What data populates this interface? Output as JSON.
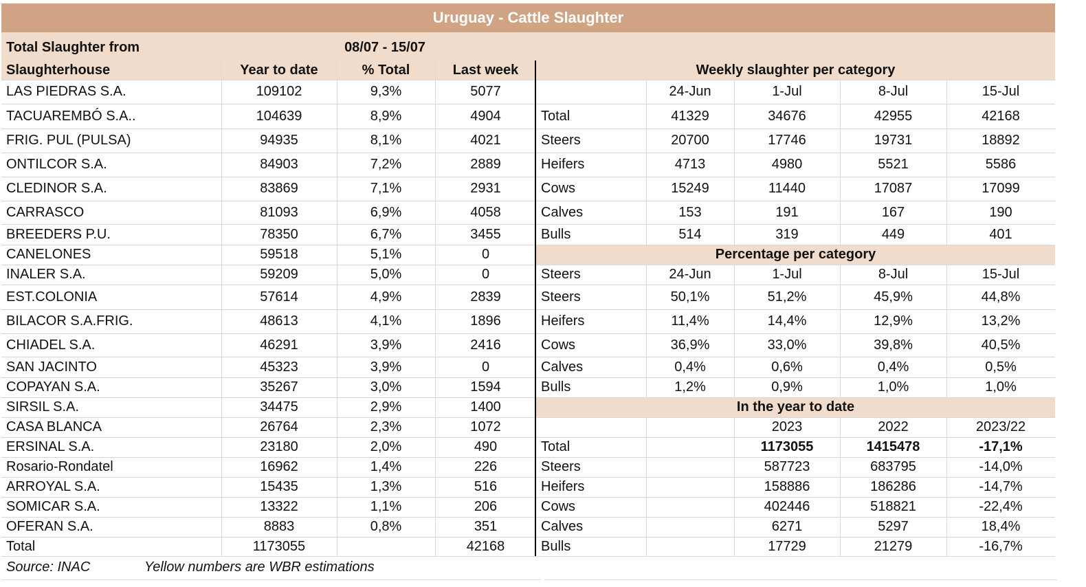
{
  "title": "Uruguay - Cattle Slaughter",
  "period_label": "Total Slaughter from",
  "period": "08/07 - 15/07",
  "left_table": {
    "headers": [
      "Slaughterhouse",
      "Year to date",
      "% Total",
      "Last week"
    ],
    "rows": [
      [
        "LAS PIEDRAS S.A.",
        109102,
        "9,3%",
        5077
      ],
      [
        "TACUAREMBÓ S.A..",
        104639,
        "8,9%",
        4904
      ],
      [
        "FRIG. PUL (PULSA)",
        94935,
        "8,1%",
        4021
      ],
      [
        "ONTILCOR S.A.",
        84903,
        "7,2%",
        2889
      ],
      [
        "CLEDINOR S.A.",
        83869,
        "7,1%",
        2931
      ],
      [
        "CARRASCO",
        81093,
        "6,9%",
        4058
      ],
      [
        "BREEDERS P.U.",
        78350,
        "6,7%",
        3455
      ],
      [
        "CANELONES",
        59518,
        "5,1%",
        0
      ],
      [
        "INALER S.A.",
        59209,
        "5,0%",
        0
      ],
      [
        "EST.COLONIA",
        57614,
        "4,9%",
        2839
      ],
      [
        "BILACOR S.A.FRIG.",
        48613,
        "4,1%",
        1896
      ],
      [
        "CHIADEL S.A.",
        46291,
        "3,9%",
        2416
      ],
      [
        "SAN JACINTO",
        45323,
        "3,9%",
        0
      ],
      [
        "COPAYAN S.A.",
        35267,
        "3,0%",
        1594
      ],
      [
        "SIRSIL S.A.",
        34475,
        "2,9%",
        1400
      ],
      [
        "CASA BLANCA",
        26764,
        "2,3%",
        1072
      ],
      [
        "ERSINAL S.A.",
        23180,
        "2,0%",
        490
      ],
      [
        "Rosario-Rondatel",
        16962,
        "1,4%",
        226
      ],
      [
        "ARROYAL S.A.",
        15435,
        "1,3%",
        516
      ],
      [
        "SOMICAR S.A.",
        13322,
        "1,1%",
        206
      ],
      [
        "OFERAN S.A.",
        8883,
        "0,8%",
        351
      ]
    ],
    "total": {
      "label": "Total",
      "year_to_date": 1173055,
      "last_week": 42168
    }
  },
  "weekly": {
    "title": "Weekly slaughter per category",
    "dates": [
      "24-Jun",
      "1-Jul",
      "8-Jul",
      "15-Jul"
    ],
    "rows": [
      [
        "Total",
        41329,
        34676,
        42955,
        42168
      ],
      [
        "Steers",
        20700,
        17746,
        19731,
        18892
      ],
      [
        "Heifers",
        4713,
        4980,
        5521,
        5586
      ],
      [
        "Cows",
        15249,
        11440,
        17087,
        17099
      ],
      [
        "Calves",
        153,
        191,
        167,
        190
      ],
      [
        "Bulls",
        514,
        319,
        449,
        401
      ]
    ]
  },
  "percentage": {
    "title": "Percentage per category",
    "header": [
      "Steers",
      "24-Jun",
      "1-Jul",
      "8-Jul",
      "15-Jul"
    ],
    "rows": [
      [
        "Steers",
        "50,1%",
        "51,2%",
        "45,9%",
        "44,8%"
      ],
      [
        "Heifers",
        "11,4%",
        "14,4%",
        "12,9%",
        "13,2%"
      ],
      [
        "Cows",
        "36,9%",
        "33,0%",
        "39,8%",
        "40,5%"
      ],
      [
        "Calves",
        "0,4%",
        "0,6%",
        "0,4%",
        "0,5%"
      ],
      [
        "Bulls",
        "1,2%",
        "0,9%",
        "1,0%",
        "1,0%"
      ]
    ]
  },
  "year_to_date": {
    "title": "In the year to date",
    "columns": [
      "2023",
      "2022",
      "2023/22"
    ],
    "rows": [
      [
        "Total",
        1173055,
        1415478,
        "-17,1%"
      ],
      [
        "Steers",
        587723,
        683795,
        "-14,0%"
      ],
      [
        "Heifers",
        158886,
        186286,
        "-14,7%"
      ],
      [
        "Cows",
        402446,
        518821,
        "-22,4%"
      ],
      [
        "Calves",
        6271,
        5297,
        "18,4%"
      ],
      [
        "Bulls",
        17729,
        21279,
        "-16,7%"
      ]
    ]
  },
  "footer": {
    "source": "Source: INAC",
    "note": "Yellow numbers are WBR estimations"
  }
}
